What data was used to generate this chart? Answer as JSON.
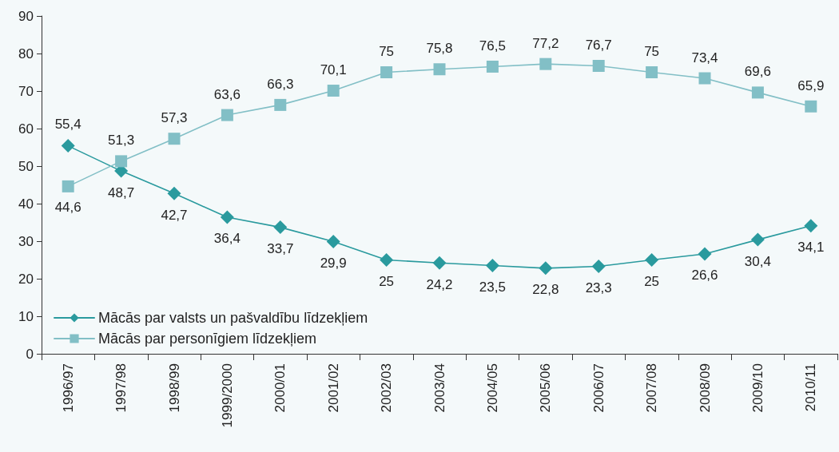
{
  "chart_data": {
    "type": "line",
    "categories": [
      "1996/97",
      "1997/98",
      "1998/99",
      "1999/2000",
      "2000/01",
      "2001/02",
      "2002/03",
      "2003/04",
      "2004/05",
      "2005/06",
      "2006/07",
      "2007/08",
      "2008/09",
      "2009/10",
      "2010/11"
    ],
    "series": [
      {
        "name": "Mācās par valsts un pašvaldību līdzekļiem",
        "color": "#2a9a9e",
        "marker": "diamond",
        "values": [
          55.4,
          48.7,
          42.7,
          36.4,
          33.7,
          29.9,
          25,
          24.2,
          23.5,
          22.8,
          23.3,
          25,
          26.6,
          30.4,
          34.1
        ],
        "value_labels": [
          "55,4",
          "48,7",
          "42,7",
          "36,4",
          "33,7",
          "29,9",
          "25",
          "24,2",
          "23,5",
          "22,8",
          "23,3",
          "25",
          "26,6",
          "30,4",
          "34,1"
        ]
      },
      {
        "name": "Mācās par personīgiem līdzekļiem",
        "color": "#82bfc6",
        "marker": "square",
        "values": [
          44.6,
          51.3,
          57.3,
          63.6,
          66.3,
          70.1,
          75,
          75.8,
          76.5,
          77.2,
          76.7,
          75,
          73.4,
          69.6,
          65.9
        ],
        "value_labels": [
          "44,6",
          "51,3",
          "57,3",
          "63,6",
          "66,3",
          "70,1",
          "75",
          "75,8",
          "76,5",
          "77,2",
          "76,7",
          "75",
          "73,4",
          "69,6",
          "65,9"
        ]
      }
    ],
    "ylim": [
      0,
      90
    ],
    "yticks": [
      0,
      10,
      20,
      30,
      40,
      50,
      60,
      70,
      80,
      90
    ],
    "grid": false,
    "legend": "bottom left",
    "line_style": "solid"
  }
}
